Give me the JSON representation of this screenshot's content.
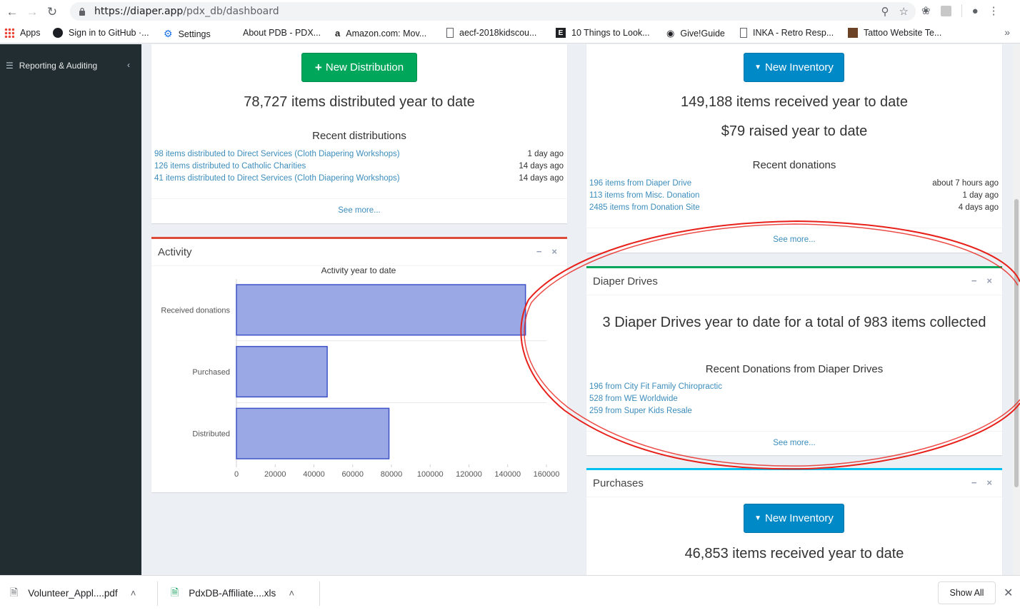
{
  "browser": {
    "url_host": "https://diaper.app",
    "url_path": "/pdx_db/dashboard",
    "bookmarks": [
      {
        "label": "Apps",
        "icon": "apps-grid-icon"
      },
      {
        "label": "Sign in to GitHub ·...",
        "icon": "github-icon"
      },
      {
        "label": "Settings",
        "icon": "gear-icon"
      },
      {
        "label": "About PDB - PDX...",
        "icon": "page-icon"
      },
      {
        "label": "Amazon.com: Mov...",
        "icon": "amazon-icon"
      },
      {
        "label": "aecf-2018kidscou...",
        "icon": "document-icon"
      },
      {
        "label": "10 Things to Look...",
        "icon": "e-logo-icon"
      },
      {
        "label": "Give!Guide",
        "icon": "location-pin-icon"
      },
      {
        "label": "INKA - Retro Resp...",
        "icon": "document-icon"
      },
      {
        "label": "Tattoo Website Te...",
        "icon": "thumbnail-icon"
      }
    ]
  },
  "sidebar": {
    "items": [
      {
        "label": "Reporting & Auditing"
      }
    ]
  },
  "distributions": {
    "button_label": "New Distribution",
    "stat": "78,727 items distributed year to date",
    "recent_heading": "Recent distributions",
    "rows": [
      {
        "text": "98 items distributed to Direct Services (Cloth Diapering Workshops)",
        "when": "1 day ago"
      },
      {
        "text": "126 items distributed to Catholic Charities",
        "when": "14 days ago"
      },
      {
        "text": "41 items distributed to Direct Services (Cloth Diapering Workshops)",
        "when": "14 days ago"
      }
    ],
    "see_more": "See more..."
  },
  "activity": {
    "title": "Activity",
    "minimize": "−",
    "close": "×"
  },
  "donations": {
    "button_label": "New Inventory",
    "stat": "149,188 items received year to date",
    "stat2": "$79 raised year to date",
    "recent_heading": "Recent donations",
    "rows": [
      {
        "text": "196 items from Diaper Drive",
        "when": "about 7 hours ago"
      },
      {
        "text": "113 items from Misc. Donation",
        "when": "1 day ago"
      },
      {
        "text": "2485 items from Donation Site",
        "when": "4 days ago"
      }
    ],
    "see_more": "See more..."
  },
  "diaper_drives": {
    "title": "Diaper Drives",
    "minimize": "−",
    "close": "×",
    "stat": "3 Diaper Drives year to date for a total of 983 items collected",
    "recent_heading": "Recent Donations from Diaper Drives",
    "rows": [
      {
        "text": "196 from City Fit Family Chiropractic"
      },
      {
        "text": "528 from WE Worldwide"
      },
      {
        "text": "259 from Super Kids Resale"
      }
    ],
    "see_more": "See more..."
  },
  "purchases": {
    "title": "Purchases",
    "minimize": "−",
    "close": "×",
    "button_label": "New Inventory",
    "stat": "46,853 items received year to date"
  },
  "downloads": {
    "items": [
      {
        "name": "Volunteer_Appl....pdf"
      },
      {
        "name": "PdxDB-Affiliate....xls"
      }
    ],
    "show_all": "Show All"
  },
  "colors": {
    "green": "#00a65a",
    "blue": "#0089c7",
    "red_border": "#dd4b39",
    "green_border": "#00a65a",
    "aqua_border": "#00c0ef",
    "bar_fill": "#9ba8e6",
    "bar_stroke": "#3d52c7",
    "annotation": "#e8201a"
  },
  "chart_data": {
    "type": "bar",
    "orientation": "horizontal",
    "title": "Activity year to date",
    "categories": [
      "Received donations",
      "Purchased",
      "Distributed"
    ],
    "values": [
      149188,
      46853,
      78727
    ],
    "xlim": [
      0,
      160000
    ],
    "xticks": [
      "0",
      "20000",
      "40000",
      "60000",
      "80000",
      "100000",
      "120000",
      "140000",
      "160000"
    ],
    "grid": true
  }
}
